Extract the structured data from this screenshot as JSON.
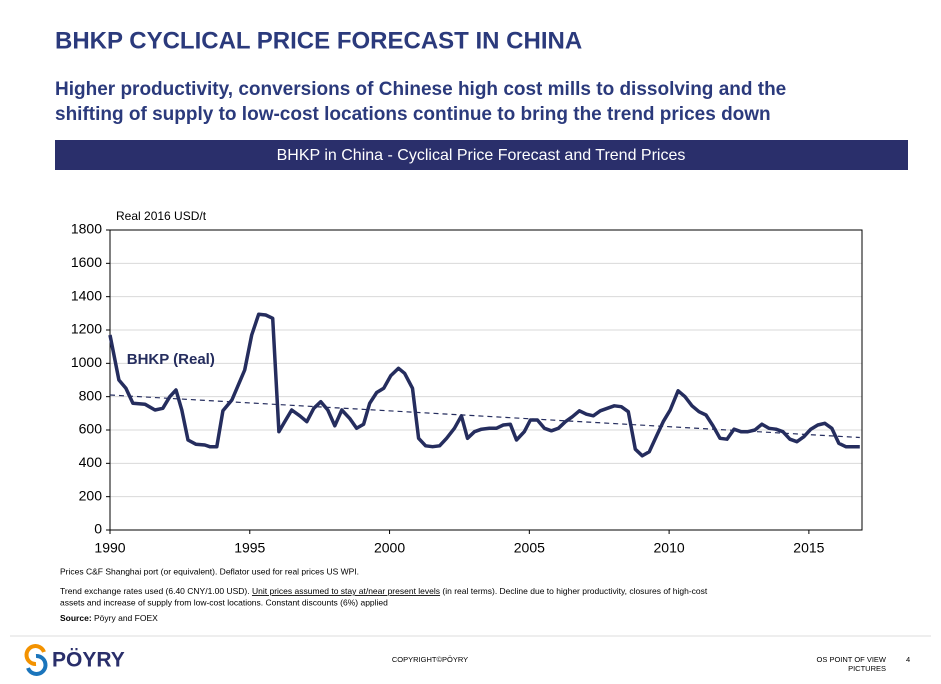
{
  "title": "BHKP CYCLICAL PRICE FORECAST IN CHINA",
  "subtitle": [
    "Higher productivity, conversions of Chinese high cost mills to dissolving and the",
    "shifting of supply to low-cost locations continue to bring the trend prices down"
  ],
  "notes": {
    "line1": "Prices C&F Shanghai port (or equivalent).  Deflator used for real prices US WPI.",
    "line2": [
      "Trend exchange rates used (6.40 CNY/1.00 USD). ",
      "Unit prices assumed to stay at/near present levels",
      " (in real terms). Decline due to higher productivity, closures of high-cost"
    ],
    "line3": "assets and increase of supply from low-cost locations. Constant discounts (6%) applied",
    "source_label": "Source:",
    "source": " Pöyry and FOEX"
  },
  "footer": {
    "logo": "PÖYRY",
    "copyright": "COPYRIGHT©PÖYRY",
    "right": [
      "OS POINT OF VIEW",
      "PICTURES"
    ],
    "page": "4"
  },
  "chart_data": {
    "type": "line",
    "title": "BHKP in China - Cyclical Price Forecast and Trend Prices",
    "y_label": "Real 2016 USD/t",
    "xlim": [
      1990,
      2016.9
    ],
    "xticks": [
      1990,
      1995,
      2000,
      2005,
      2010,
      2015
    ],
    "ylim": [
      0,
      1800
    ],
    "yticks": [
      0,
      200,
      400,
      600,
      800,
      1000,
      1200,
      1400,
      1600,
      1800
    ],
    "grid": true,
    "series": [
      {
        "name": "BHKP (Real)",
        "color": "#252d5e",
        "dashed": false,
        "x": [
          1990.0,
          1990.32,
          1990.57,
          1990.82,
          1991.25,
          1991.61,
          1991.89,
          1992.14,
          1992.36,
          1992.57,
          1992.79,
          1993.07,
          1993.39,
          1993.57,
          1993.82,
          1994.04,
          1994.36,
          1994.82,
          1995.07,
          1995.32,
          1995.57,
          1995.82,
          1996.04,
          1996.25,
          1996.5,
          1996.79,
          1997.04,
          1997.29,
          1997.54,
          1997.79,
          1998.04,
          1998.29,
          1998.57,
          1998.82,
          1999.07,
          1999.29,
          1999.54,
          1999.79,
          2000.04,
          2000.32,
          2000.54,
          2000.82,
          2001.04,
          2001.29,
          2001.54,
          2001.79,
          2002.04,
          2002.32,
          2002.57,
          2002.79,
          2003.04,
          2003.29,
          2003.57,
          2003.82,
          2004.07,
          2004.32,
          2004.54,
          2004.82,
          2005.04,
          2005.29,
          2005.54,
          2005.79,
          2006.04,
          2006.29,
          2006.54,
          2006.79,
          2007.04,
          2007.29,
          2007.54,
          2007.79,
          2008.04,
          2008.29,
          2008.54,
          2008.79,
          2009.04,
          2009.29,
          2009.54,
          2009.79,
          2010.04,
          2010.32,
          2010.57,
          2010.82,
          2011.07,
          2011.32,
          2011.57,
          2011.82,
          2012.07,
          2012.32,
          2012.57,
          2012.82,
          2013.07,
          2013.32,
          2013.57,
          2013.82,
          2014.07,
          2014.32,
          2014.57,
          2014.82,
          2015.07,
          2015.32,
          2015.57,
          2015.82,
          2016.07,
          2016.32,
          2016.57,
          2016.82
        ],
        "values": [
          1170,
          900,
          850,
          760,
          755,
          720,
          730,
          800,
          840,
          720,
          540,
          515,
          510,
          500,
          500,
          715,
          780,
          960,
          1170,
          1295,
          1290,
          1270,
          590,
          650,
          720,
          685,
          650,
          730,
          770,
          720,
          625,
          720,
          670,
          610,
          635,
          760,
          825,
          850,
          925,
          970,
          940,
          850,
          550,
          505,
          500,
          505,
          550,
          610,
          685,
          550,
          590,
          605,
          610,
          610,
          630,
          635,
          540,
          590,
          660,
          660,
          610,
          595,
          610,
          650,
          680,
          715,
          695,
          685,
          715,
          730,
          745,
          740,
          710,
          485,
          445,
          470,
          560,
          650,
          720,
          835,
          800,
          745,
          710,
          690,
          625,
          550,
          545,
          605,
          590,
          590,
          600,
          635,
          610,
          605,
          590,
          545,
          530,
          560,
          605,
          630,
          640,
          610,
          520,
          500,
          500,
          500
        ]
      },
      {
        "color": "#252d5e",
        "dashed": true,
        "x": [
          1990,
          2016.82
        ],
        "values": [
          810,
          555
        ]
      }
    ],
    "label_at": [
      1990.6,
      1020
    ]
  }
}
